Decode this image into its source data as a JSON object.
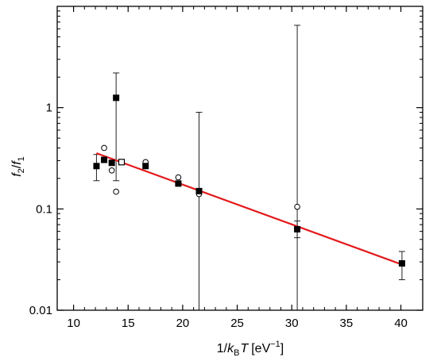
{
  "chart_data": {
    "type": "scatter",
    "title": "",
    "xlabel": {
      "prefix": "1/",
      "k": "k",
      "sub": "B",
      "T": "T",
      "unit": "[eV",
      "exp": "−1",
      "close": "]"
    },
    "ylabel": {
      "f2": "f",
      "sub2": "2",
      "slash": "/",
      "f1": "f",
      "sub1": "1"
    },
    "x_scale": "linear",
    "y_scale": "log",
    "xlim": [
      8.5,
      42
    ],
    "ylim": [
      0.01,
      10
    ],
    "x_ticks": [
      10,
      15,
      20,
      25,
      30,
      35,
      40
    ],
    "x_tick_labels": [
      "10",
      "15",
      "20",
      "25",
      "30",
      "35",
      "40"
    ],
    "y_ticks": [
      0.01,
      0.1,
      1
    ],
    "y_tick_labels": [
      "0.01",
      "0.1",
      "1"
    ],
    "grid": false,
    "legend": "none",
    "series": [
      {
        "marker": "filled-square",
        "color": "#000000",
        "points": [
          {
            "x": 12.1,
            "y": 0.265,
            "ylo": 0.19,
            "yhi": 0.345
          },
          {
            "x": 12.8,
            "y": 0.305
          },
          {
            "x": 13.5,
            "y": 0.285
          },
          {
            "x": 13.9,
            "y": 1.25,
            "ylo": 0.19,
            "yhi": 2.2
          },
          {
            "x": 16.6,
            "y": 0.265
          },
          {
            "x": 19.6,
            "y": 0.178
          },
          {
            "x": 21.5,
            "y": 0.15,
            "ylo": 0.01,
            "yhi": 0.9
          },
          {
            "x": 30.5,
            "y": 0.063,
            "ylo": 0.052,
            "yhi": 0.076
          },
          {
            "x": 40.1,
            "y": 0.029,
            "ylo": 0.02,
            "yhi": 0.038
          }
        ]
      },
      {
        "marker": "open-square",
        "color": "#000000",
        "points": [
          {
            "x": 14.4,
            "y": 0.29
          }
        ]
      },
      {
        "marker": "open-circle",
        "color": "#000000",
        "points": [
          {
            "x": 12.8,
            "y": 0.4
          },
          {
            "x": 13.5,
            "y": 0.24
          },
          {
            "x": 13.9,
            "y": 0.148
          },
          {
            "x": 16.6,
            "y": 0.29
          },
          {
            "x": 19.6,
            "y": 0.205
          },
          {
            "x": 21.5,
            "y": 0.14
          },
          {
            "x": 30.5,
            "y": 0.105,
            "ylo": 0.01,
            "yhi": 6.5
          }
        ]
      }
    ],
    "fit_line": {
      "color": "#e41a1c",
      "x": [
        12.1,
        40.2
      ],
      "y": [
        0.355,
        0.028
      ]
    }
  }
}
